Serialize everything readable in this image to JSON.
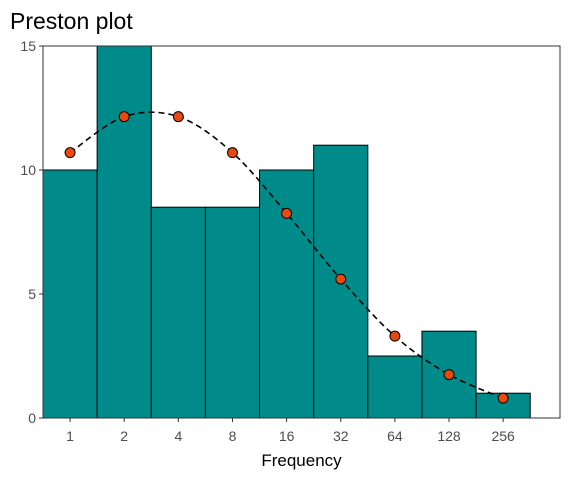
{
  "chart_data": {
    "type": "bar",
    "title": "Preston plot",
    "xlabel": "Frequency",
    "ylabel": "",
    "categories": [
      "1",
      "2",
      "4",
      "8",
      "16",
      "32",
      "64",
      "128",
      "256"
    ],
    "series": [
      {
        "type": "bar",
        "values": [
          10,
          15,
          8.5,
          8.5,
          10,
          11,
          2.5,
          3.5,
          1
        ]
      },
      {
        "type": "line",
        "style": "dashed",
        "markers": "circle",
        "values": [
          10.7,
          12.15,
          12.15,
          10.7,
          8.25,
          5.6,
          3.3,
          1.75,
          0.8
        ]
      }
    ],
    "ylim": [
      0,
      15
    ],
    "yticks": [
      0,
      5,
      10,
      15
    ],
    "grid": false,
    "colors": {
      "bar_fill": "#008B8B",
      "bar_stroke": "#000000",
      "point_fill": "#E8490F",
      "line": "#000000"
    }
  }
}
